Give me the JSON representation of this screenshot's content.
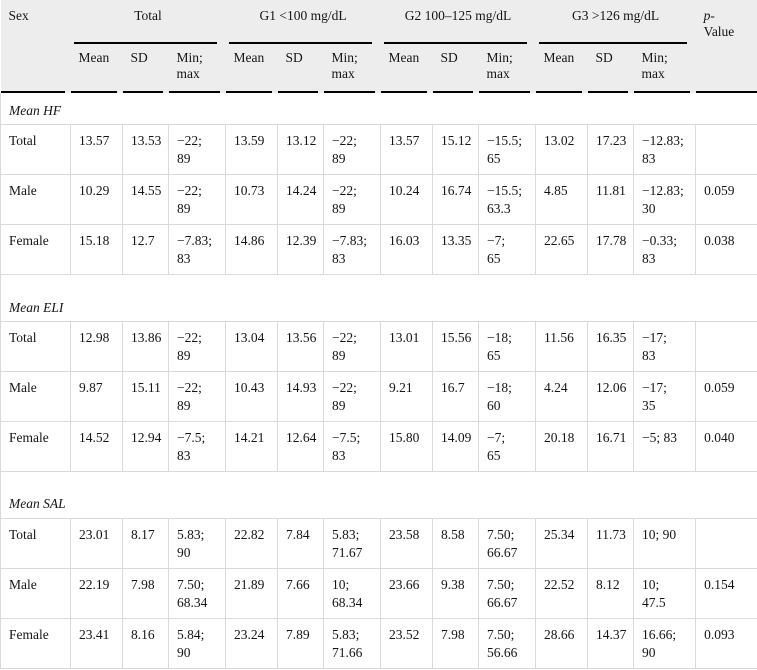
{
  "table": {
    "header": {
      "sex_label": "Sex",
      "groups": [
        {
          "label": "Total"
        },
        {
          "label": "G1 <100 mg/dL"
        },
        {
          "label": "G2 100–125 mg/dL"
        },
        {
          "label": "G3 >126 mg/dL"
        }
      ],
      "sub_columns": [
        "Mean",
        "SD",
        "Min;\nmax"
      ],
      "p_line1": "p-",
      "p_line2": "Value"
    },
    "sections": [
      {
        "title": "Mean HF",
        "rows": [
          {
            "sex": "Total",
            "cells": [
              "13.57",
              "13.53",
              "−22;\n89",
              "13.59",
              "13.12",
              "−22;\n89",
              "13.57",
              "15.12",
              "−15.5;\n65",
              "13.02",
              "17.23",
              "−12.83;\n83"
            ],
            "p": ""
          },
          {
            "sex": "Male",
            "cells": [
              "10.29",
              "14.55",
              "−22;\n89",
              "10.73",
              "14.24",
              "−22;\n89",
              "10.24",
              "16.74",
              "−15.5;\n63.3",
              "4.85",
              "11.81",
              "−12.83;\n30"
            ],
            "p": "0.059"
          },
          {
            "sex": "Female",
            "cells": [
              "15.18",
              "12.7",
              "−7.83;\n83",
              "14.86",
              "12.39",
              "−7.83;\n83",
              "16.03",
              "13.35",
              "−7;\n65",
              "22.65",
              "17.78",
              "−0.33;\n83"
            ],
            "p": "0.038"
          }
        ]
      },
      {
        "title": "Mean ELI",
        "rows": [
          {
            "sex": "Total",
            "cells": [
              "12.98",
              "13.86",
              "−22;\n89",
              "13.04",
              "13.56",
              "−22;\n89",
              "13.01",
              "15.56",
              "−18;\n65",
              "11.56",
              "16.35",
              "−17;\n83"
            ],
            "p": ""
          },
          {
            "sex": "Male",
            "cells": [
              "9.87",
              "15.11",
              "−22;\n89",
              "10.43",
              "14.93",
              "−22;\n89",
              "9.21",
              "16.7",
              "−18;\n60",
              "4.24",
              "12.06",
              "−17;\n35"
            ],
            "p": "0.059"
          },
          {
            "sex": "Female",
            "cells": [
              "14.52",
              "12.94",
              "−7.5;\n83",
              "14.21",
              "12.64",
              "−7.5;\n83",
              "15.80",
              "14.09",
              "−7;\n65",
              "20.18",
              "16.71",
              "−5; 83"
            ],
            "p": "0.040"
          }
        ]
      },
      {
        "title": "Mean SAL",
        "rows": [
          {
            "sex": "Total",
            "cells": [
              "23.01",
              "8.17",
              "5.83;\n90",
              "22.82",
              "7.84",
              "5.83;\n71.67",
              "23.58",
              "8.58",
              "7.50;\n66.67",
              "25.34",
              "11.73",
              "10; 90"
            ],
            "p": ""
          },
          {
            "sex": "Male",
            "cells": [
              "22.19",
              "7.98",
              "7.50;\n68.34",
              "21.89",
              "7.66",
              "10;\n68.34",
              "23.66",
              "9.38",
              "7.50;\n66.67",
              "22.52",
              "8.12",
              "10;\n47.5"
            ],
            "p": "0.154"
          },
          {
            "sex": "Female",
            "cells": [
              "23.41",
              "8.16",
              "5.84;\n90",
              "23.24",
              "7.89",
              "5.83;\n71.66",
              "23.52",
              "7.98",
              "7.50;\n56.66",
              "28.66",
              "14.37",
              "16.66;\n90"
            ],
            "p": "0.093"
          }
        ]
      }
    ]
  },
  "colors": {
    "header_bg": "#ededed",
    "grid": "#d9d9d9",
    "rule": "#000000",
    "text": "#151515"
  }
}
